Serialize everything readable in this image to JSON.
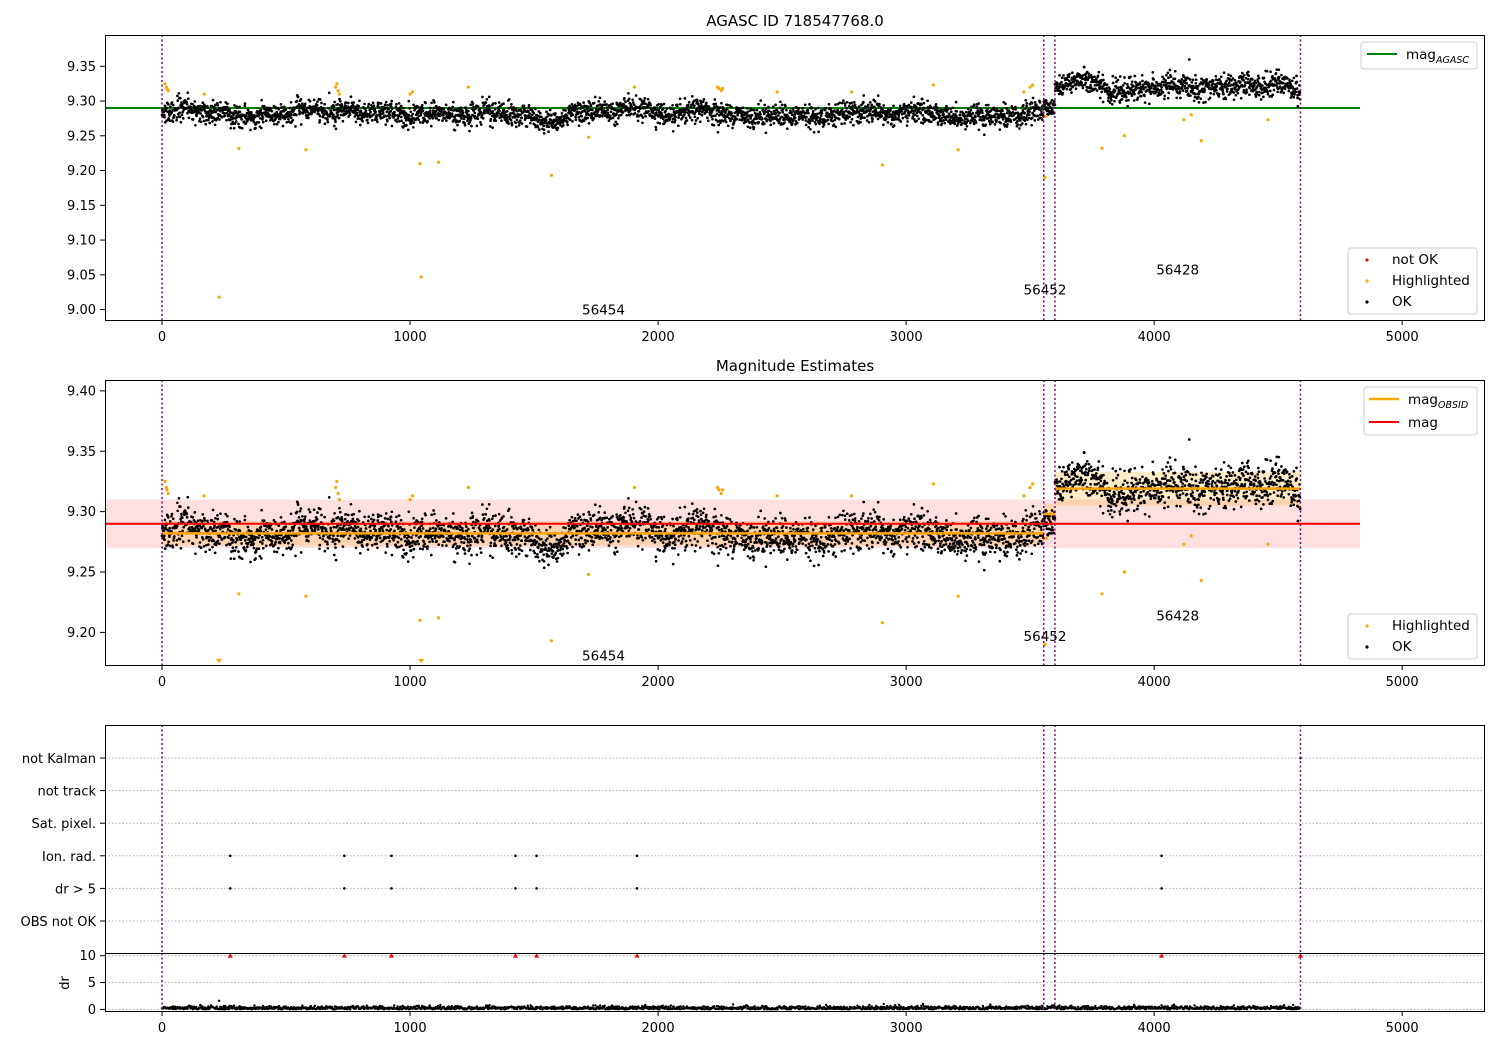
{
  "chart_data": [
    {
      "type": "scatter",
      "title": "AGASC ID 718547768.0",
      "xlim": [
        -230,
        5330
      ],
      "ylim": [
        8.985,
        9.395
      ],
      "x_ticks": [
        "0",
        "1000",
        "2000",
        "3000",
        "4000",
        "5000"
      ],
      "x_tick_values": [
        0,
        1000,
        2000,
        3000,
        4000,
        5000
      ],
      "y_ticks": [
        "9.00",
        "9.05",
        "9.10",
        "9.15",
        "9.20",
        "9.25",
        "9.30",
        "9.35"
      ],
      "y_tick_values": [
        9.0,
        9.05,
        9.1,
        9.15,
        9.2,
        9.25,
        9.3,
        9.35
      ],
      "obs_boundaries": [
        0,
        3555,
        3600,
        4590
      ],
      "obs_labels": [
        {
          "text": "56454",
          "x": 1780,
          "y": 9.0
        },
        {
          "text": "56452",
          "x": 3560,
          "y": 9.029
        },
        {
          "text": "56428",
          "x": 4095,
          "y": 9.058
        }
      ],
      "mag_agasc": {
        "value": 9.29,
        "x_range": [
          -230,
          4830
        ],
        "color": "#008000"
      },
      "series": [
        {
          "name": "not OK",
          "color": "#ff0000",
          "points": []
        },
        {
          "name": "Highlighted",
          "color": "#ffa500",
          "points": [
            [
              12,
              9.325
            ],
            [
              18,
              9.32
            ],
            [
              20,
              9.318
            ],
            [
              25,
              9.315
            ],
            [
              170,
              9.31
            ],
            [
              230,
              9.018
            ],
            [
              310,
              9.232
            ],
            [
              580,
              9.23
            ],
            [
              700,
              9.32
            ],
            [
              705,
              9.325
            ],
            [
              710,
              9.315
            ],
            [
              715,
              9.31
            ],
            [
              1000,
              9.31
            ],
            [
              1010,
              9.313
            ],
            [
              1040,
              9.21
            ],
            [
              1045,
              9.047
            ],
            [
              1115,
              9.212
            ],
            [
              1235,
              9.32
            ],
            [
              1570,
              9.193
            ],
            [
              1720,
              9.248
            ],
            [
              1905,
              9.32
            ],
            [
              2240,
              9.32
            ],
            [
              2245,
              9.318
            ],
            [
              2255,
              9.315
            ],
            [
              2260,
              9.318
            ],
            [
              2480,
              9.313
            ],
            [
              2780,
              9.313
            ],
            [
              2905,
              9.208
            ],
            [
              3110,
              9.323
            ],
            [
              3210,
              9.23
            ],
            [
              3475,
              9.313
            ],
            [
              3500,
              9.32
            ],
            [
              3510,
              9.323
            ],
            [
              3560,
              9.19
            ],
            [
              3565,
              9.278
            ],
            [
              3790,
              9.232
            ],
            [
              3880,
              9.25
            ],
            [
              4120,
              9.273
            ],
            [
              4150,
              9.28
            ],
            [
              4190,
              9.243
            ],
            [
              4460,
              9.273
            ]
          ]
        },
        {
          "name": "OK",
          "color": "#000000",
          "segments": [
            {
              "x_start": 0,
              "x_end": 3555,
              "center": 9.282,
              "spread": 0.011
            },
            {
              "x_start": 3555,
              "x_end": 3600,
              "center": 9.297,
              "spread": 0.009
            },
            {
              "x_start": 3600,
              "x_end": 4590,
              "center": 9.318,
              "spread": 0.012
            }
          ]
        }
      ],
      "legends": [
        {
          "entries": [
            {
              "label": "mag",
              "sub": "AGASC",
              "kind": "line",
              "color": "#008000"
            }
          ],
          "loc": "upper right"
        },
        {
          "entries": [
            {
              "label": "not OK",
              "kind": "point",
              "color": "#ff0000"
            },
            {
              "label": "Highlighted",
              "kind": "point",
              "color": "#ffa500"
            },
            {
              "label": "OK",
              "kind": "point",
              "color": "#000000"
            }
          ],
          "loc": "lower right"
        }
      ]
    },
    {
      "type": "scatter",
      "title": "Magnitude Estimates",
      "xlim": [
        -230,
        5330
      ],
      "ylim": [
        9.173,
        9.409
      ],
      "x_ticks": [
        "0",
        "1000",
        "2000",
        "3000",
        "4000",
        "5000"
      ],
      "x_tick_values": [
        0,
        1000,
        2000,
        3000,
        4000,
        5000
      ],
      "y_ticks": [
        "9.20",
        "9.25",
        "9.30",
        "9.35",
        "9.40"
      ],
      "y_tick_values": [
        9.2,
        9.25,
        9.3,
        9.35,
        9.4
      ],
      "obs_boundaries": [
        0,
        3555,
        3600,
        4590
      ],
      "obs_labels": [
        {
          "text": "56454",
          "x": 1780,
          "y": 9.181
        },
        {
          "text": "56452",
          "x": 3560,
          "y": 9.197
        },
        {
          "text": "56428",
          "x": 4095,
          "y": 9.214
        }
      ],
      "mag": {
        "value": 9.29,
        "band": [
          9.27,
          9.31
        ],
        "x_range": [
          -230,
          4830
        ],
        "color": "#ff0000"
      },
      "mag_obsid": [
        {
          "x_range": [
            0,
            3555
          ],
          "value": 9.282,
          "band": [
            9.272,
            9.292
          ]
        },
        {
          "x_range": [
            3555,
            3600
          ],
          "value": 9.298,
          "band": [
            9.29,
            9.306
          ]
        },
        {
          "x_range": [
            3600,
            4590
          ],
          "value": 9.319,
          "band": [
            9.305,
            9.333
          ]
        }
      ],
      "mag_obsid_color": "#ffa500",
      "series": [
        {
          "name": "Highlighted",
          "color": "#ffa500",
          "points": [
            [
              12,
              9.325
            ],
            [
              18,
              9.32
            ],
            [
              20,
              9.318
            ],
            [
              25,
              9.315
            ],
            [
              170,
              9.313
            ],
            [
              310,
              9.232
            ],
            [
              580,
              9.23
            ],
            [
              700,
              9.32
            ],
            [
              705,
              9.325
            ],
            [
              710,
              9.315
            ],
            [
              715,
              9.31
            ],
            [
              1000,
              9.31
            ],
            [
              1010,
              9.313
            ],
            [
              1040,
              9.21
            ],
            [
              1115,
              9.212
            ],
            [
              1235,
              9.32
            ],
            [
              1570,
              9.193
            ],
            [
              1720,
              9.248
            ],
            [
              1905,
              9.32
            ],
            [
              2240,
              9.32
            ],
            [
              2245,
              9.318
            ],
            [
              2255,
              9.315
            ],
            [
              2260,
              9.318
            ],
            [
              2480,
              9.313
            ],
            [
              2780,
              9.313
            ],
            [
              2905,
              9.208
            ],
            [
              3110,
              9.323
            ],
            [
              3210,
              9.23
            ],
            [
              3475,
              9.313
            ],
            [
              3500,
              9.32
            ],
            [
              3510,
              9.323
            ],
            [
              3560,
              9.19
            ],
            [
              3565,
              9.278
            ],
            [
              3790,
              9.232
            ],
            [
              3880,
              9.25
            ],
            [
              4120,
              9.273
            ],
            [
              4150,
              9.28
            ],
            [
              4190,
              9.243
            ],
            [
              4460,
              9.273
            ]
          ]
        },
        {
          "name": "OK",
          "color": "#000000",
          "segments": [
            {
              "x_start": 0,
              "x_end": 3555,
              "center": 9.282,
              "spread": 0.011
            },
            {
              "x_start": 3555,
              "x_end": 3600,
              "center": 9.297,
              "spread": 0.009
            },
            {
              "x_start": 3600,
              "x_end": 4590,
              "center": 9.318,
              "spread": 0.012
            }
          ]
        }
      ],
      "off_axis_markers": [
        230,
        1045
      ],
      "legends": [
        {
          "entries": [
            {
              "label": "mag",
              "sub": "OBSID",
              "kind": "line",
              "color": "#ffa500"
            },
            {
              "label": "mag",
              "kind": "line",
              "color": "#ff0000"
            }
          ],
          "loc": "upper right"
        },
        {
          "entries": [
            {
              "label": "Highlighted",
              "kind": "point",
              "color": "#ffa500"
            },
            {
              "label": "OK",
              "kind": "point",
              "color": "#000000"
            }
          ],
          "loc": "lower right"
        }
      ]
    },
    {
      "type": "scatter",
      "title": "",
      "xlim": [
        -230,
        5330
      ],
      "categories": [
        "not Kalman",
        "not track",
        "Sat. pixel.",
        "Ion. rad.",
        "dr > 5",
        "OBS not OK"
      ],
      "flags": [
        {
          "category": "Ion. rad.",
          "x": [
            275,
            735,
            925,
            1425,
            1510,
            1915,
            4030
          ]
        },
        {
          "category": "dr > 5",
          "x": [
            275,
            735,
            925,
            1425,
            1510,
            1915,
            4030
          ]
        },
        {
          "category": "not Kalman",
          "x": [
            4590
          ]
        }
      ],
      "obs_boundaries": [
        0,
        3555,
        3600,
        4590
      ]
    },
    {
      "type": "scatter",
      "title": "",
      "xlim": [
        -230,
        5330
      ],
      "ylim": [
        -0.3,
        10.5
      ],
      "ylabel": "dr",
      "x_ticks": [
        "0",
        "1000",
        "2000",
        "3000",
        "4000",
        "5000"
      ],
      "x_tick_values": [
        0,
        1000,
        2000,
        3000,
        4000,
        5000
      ],
      "y_ticks": [
        "0",
        "5",
        "10"
      ],
      "y_tick_values": [
        0,
        5,
        10
      ],
      "dr_clipped_markers": {
        "y": 10,
        "x": [
          275,
          735,
          925,
          1425,
          1510,
          1915,
          4030,
          4590
        ],
        "color": "#ff0000"
      },
      "dr_series": {
        "x_range": [
          0,
          4590
        ],
        "center": 0.25,
        "spread": 0.2,
        "color": "#000000"
      },
      "dr_outliers": [
        [
          230,
          1.6
        ],
        [
          2910,
          1.0
        ]
      ],
      "obs_boundaries": [
        0,
        3555,
        3600,
        4590
      ]
    }
  ]
}
